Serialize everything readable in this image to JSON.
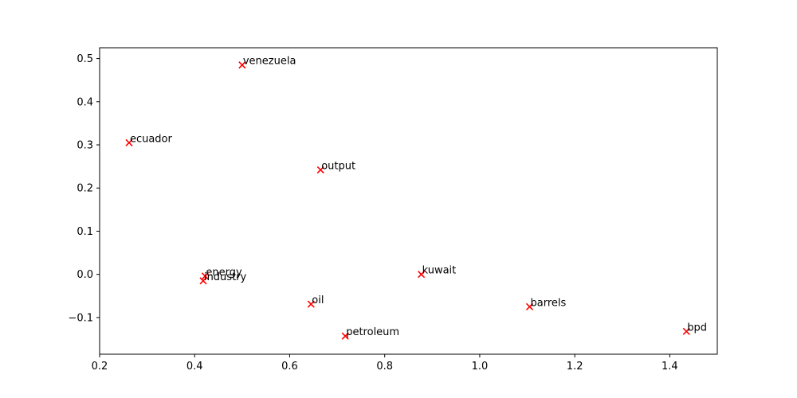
{
  "chart_data": {
    "type": "scatter",
    "title": "",
    "xlabel": "",
    "ylabel": "",
    "xlim": [
      0.2,
      1.5
    ],
    "ylim": [
      -0.185,
      0.525
    ],
    "grid": false,
    "marker": "x",
    "marker_color": "#ff0000",
    "xticks": [
      "0.2",
      "0.4",
      "0.6",
      "0.8",
      "1.0",
      "1.2",
      "1.4"
    ],
    "xtick_values": [
      0.2,
      0.4,
      0.6,
      0.8,
      1.0,
      1.2,
      1.4
    ],
    "yticks": [
      "0.5",
      "0.4",
      "0.3",
      "0.2",
      "0.1",
      "0.0",
      "−0.1"
    ],
    "ytick_values": [
      0.5,
      0.4,
      0.3,
      0.2,
      0.1,
      0.0,
      -0.1
    ],
    "points": [
      {
        "label": "venezuela",
        "x": 0.5,
        "y": 0.485
      },
      {
        "label": "ecuador",
        "x": 0.262,
        "y": 0.305
      },
      {
        "label": "output",
        "x": 0.665,
        "y": 0.242
      },
      {
        "label": "energy",
        "x": 0.422,
        "y": -0.004
      },
      {
        "label": "industry",
        "x": 0.418,
        "y": -0.015
      },
      {
        "label": "kuwait",
        "x": 0.877,
        "y": 0.0
      },
      {
        "label": "oil",
        "x": 0.645,
        "y": -0.069
      },
      {
        "label": "petroleum",
        "x": 0.717,
        "y": -0.143
      },
      {
        "label": "barrels",
        "x": 1.105,
        "y": -0.075
      },
      {
        "label": "bpd",
        "x": 1.435,
        "y": -0.132
      }
    ]
  }
}
